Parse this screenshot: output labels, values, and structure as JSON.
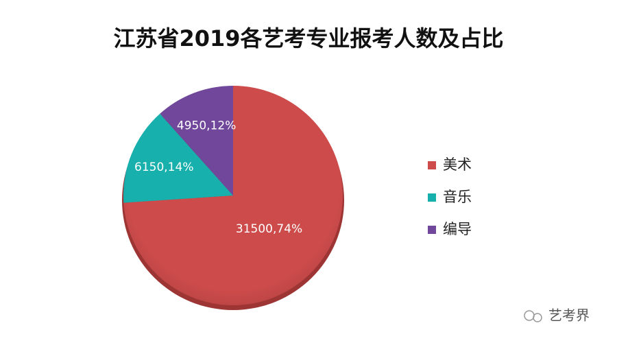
{
  "chart_data": {
    "type": "pie",
    "title": "江苏省2019各艺考专业报考人数及占比",
    "categories": [
      "美术",
      "音乐",
      "编导"
    ],
    "values": [
      31500,
      6150,
      4950
    ],
    "value_labels": [
      "31500,74%",
      "6150,14%",
      "4950,12%"
    ],
    "colors": [
      "#cd4b4b",
      "#17b0ad",
      "#70479a"
    ],
    "legend": "right"
  },
  "watermark": "艺考界"
}
